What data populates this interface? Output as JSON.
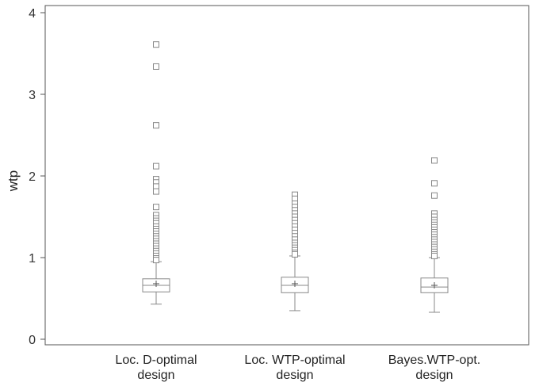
{
  "chart_data": {
    "type": "box",
    "ylabel": "wtp",
    "ylim": [
      0,
      4
    ],
    "yticks": [
      0,
      1,
      2,
      3,
      4
    ],
    "categories": [
      [
        "Loc. D-optimal",
        "design"
      ],
      [
        "Loc. WTP-optimal",
        "design"
      ],
      [
        "Bayes.WTP-opt.",
        "design"
      ]
    ],
    "boxes": [
      {
        "whisker_low": 0.43,
        "q1": 0.58,
        "median": 0.66,
        "mean": 0.68,
        "q3": 0.74,
        "whisker_high": 0.95,
        "outliers": [
          3.61,
          3.34,
          2.62,
          2.12,
          1.96,
          1.92,
          1.87,
          1.81,
          1.62,
          1.52,
          1.48,
          1.45,
          1.42,
          1.38,
          1.35,
          1.32,
          1.29,
          1.26,
          1.23,
          1.2,
          1.17,
          1.14,
          1.11,
          1.08,
          1.05,
          1.02,
          0.99,
          0.97
        ]
      },
      {
        "whisker_low": 0.35,
        "q1": 0.57,
        "median": 0.66,
        "mean": 0.68,
        "q3": 0.76,
        "whisker_high": 1.02,
        "outliers": [
          1.77,
          1.72,
          1.66,
          1.62,
          1.58,
          1.54,
          1.5,
          1.46,
          1.42,
          1.38,
          1.34,
          1.3,
          1.26,
          1.22,
          1.18,
          1.15,
          1.12,
          1.09,
          1.06,
          1.04
        ]
      },
      {
        "whisker_low": 0.33,
        "q1": 0.57,
        "median": 0.64,
        "mean": 0.66,
        "q3": 0.75,
        "whisker_high": 1.0,
        "outliers": [
          2.19,
          1.91,
          1.76,
          1.54,
          1.5,
          1.46,
          1.43,
          1.4,
          1.37,
          1.34,
          1.31,
          1.28,
          1.25,
          1.22,
          1.19,
          1.16,
          1.13,
          1.1,
          1.07,
          1.04,
          1.02
        ]
      }
    ],
    "grid": false
  }
}
